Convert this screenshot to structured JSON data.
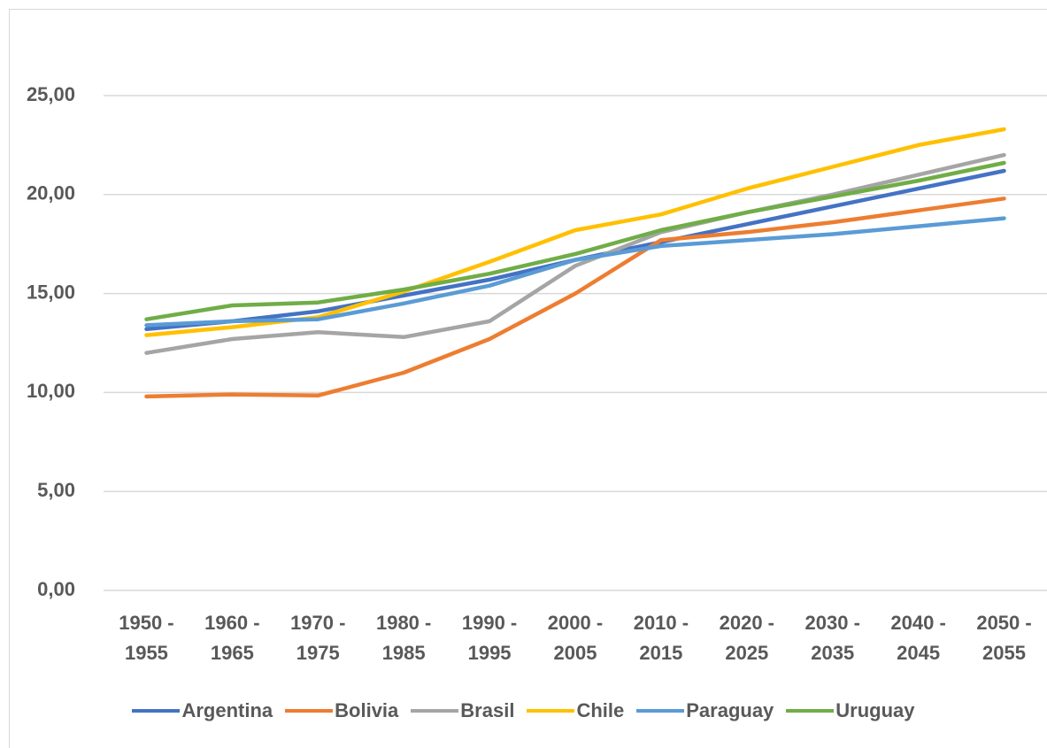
{
  "chart_data": {
    "type": "line",
    "categories": [
      "1950 - 1955",
      "1960 - 1965",
      "1970 - 1975",
      "1980 - 1985",
      "1990 - 1995",
      "2000 - 2005",
      "2010 - 2015",
      "2020 - 2025",
      "2030 - 2035",
      "2040 - 2045",
      "2050 - 2055"
    ],
    "series": [
      {
        "name": "Argentina",
        "color": "#4472c4",
        "values": [
          13.2,
          13.6,
          14.1,
          14.9,
          15.7,
          16.7,
          17.6,
          18.5,
          19.4,
          20.3,
          21.2
        ]
      },
      {
        "name": "Bolivia",
        "color": "#ed7d31",
        "values": [
          9.8,
          9.9,
          9.85,
          11.0,
          12.7,
          15.0,
          17.7,
          18.1,
          18.6,
          19.2,
          19.8
        ]
      },
      {
        "name": "Brasil",
        "color": "#a5a5a5",
        "values": [
          12.0,
          12.7,
          13.05,
          12.8,
          13.6,
          16.4,
          18.1,
          19.1,
          20.0,
          21.0,
          22.0
        ]
      },
      {
        "name": "Chile",
        "color": "#ffc000",
        "values": [
          12.9,
          13.3,
          13.8,
          15.1,
          16.6,
          18.2,
          19.0,
          20.3,
          21.4,
          22.5,
          23.3
        ]
      },
      {
        "name": "Paraguay",
        "color": "#5b9bd5",
        "values": [
          13.4,
          13.6,
          13.7,
          14.5,
          15.4,
          16.7,
          17.4,
          17.7,
          18.0,
          18.4,
          18.8
        ]
      },
      {
        "name": "Uruguay",
        "color": "#70ad47",
        "values": [
          13.7,
          14.4,
          14.55,
          15.2,
          16.0,
          17.0,
          18.2,
          19.1,
          19.9,
          20.7,
          21.6
        ]
      }
    ],
    "ylim": [
      0,
      27
    ],
    "yticks": [
      {
        "value": 0,
        "label": "0,00"
      },
      {
        "value": 5,
        "label": "5,00"
      },
      {
        "value": 10,
        "label": "10,00"
      },
      {
        "value": 15,
        "label": "15,00"
      },
      {
        "value": 20,
        "label": "20,00"
      },
      {
        "value": 25,
        "label": "25,00"
      }
    ],
    "grid": true,
    "legend": "bottom"
  }
}
